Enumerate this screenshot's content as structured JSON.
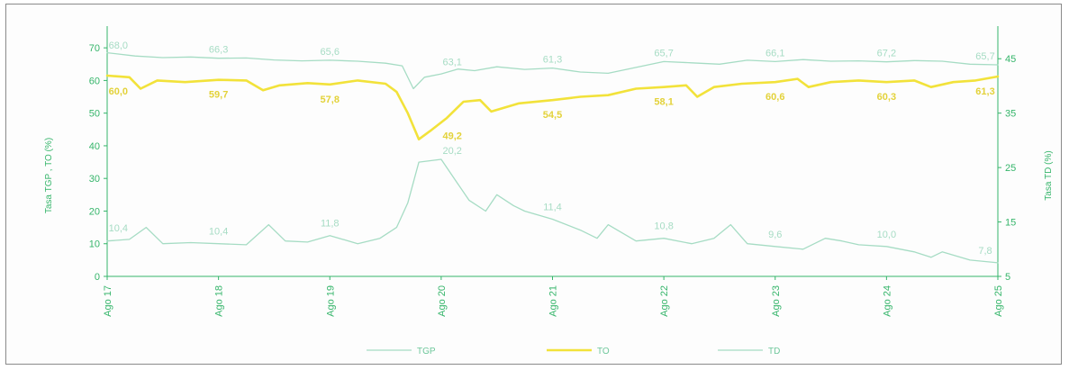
{
  "chart_data": {
    "type": "line",
    "ylabel_left": "Tasa TGP , TO (%)",
    "ylabel_right": "Tasa TD (%)",
    "ylim_left": [
      0,
      75
    ],
    "ylim_right": [
      5,
      50
    ],
    "y_ticks_left": [
      "0",
      "10",
      "20",
      "30",
      "40",
      "50",
      "60",
      "70"
    ],
    "y_ticks_right": [
      "5",
      "15",
      "25",
      "35",
      "45"
    ],
    "categories": [
      "Ago 17",
      "Ago 18",
      "Ago 19",
      "Ago 20",
      "Ago 21",
      "Ago 22",
      "Ago 23",
      "Ago 24",
      "Ago 25"
    ],
    "legend_position": "bottom",
    "colors": {
      "TGP": "#a6dcc4",
      "TO": "#f2e23a",
      "TD": "#a6dcc4",
      "axis": "#35b56a"
    },
    "series": [
      {
        "name": "TGP",
        "axis": "left",
        "x": [
          0,
          0.25,
          0.5,
          0.75,
          1,
          1.25,
          1.5,
          1.75,
          2,
          2.25,
          2.5,
          2.65,
          2.75,
          2.85,
          3,
          3.15,
          3.3,
          3.5,
          3.75,
          4,
          4.25,
          4.5,
          4.75,
          5,
          5.25,
          5.5,
          5.75,
          6,
          6.25,
          6.5,
          6.75,
          7,
          7.25,
          7.5,
          7.75,
          8
        ],
        "values": [
          68.5,
          67.5,
          67.0,
          67.2,
          66.8,
          66.9,
          66.3,
          66.0,
          66.2,
          65.9,
          65.3,
          64.5,
          57.5,
          61.0,
          62.0,
          63.5,
          63.0,
          64.2,
          63.4,
          63.8,
          62.6,
          62.2,
          64.0,
          65.8,
          65.4,
          65.0,
          66.2,
          65.8,
          66.4,
          65.9,
          66.0,
          65.7,
          66.1,
          65.9,
          65.0,
          64.8
        ]
      },
      {
        "name": "TO",
        "axis": "left",
        "x": [
          0,
          0.2,
          0.3,
          0.45,
          0.7,
          1,
          1.25,
          1.4,
          1.55,
          1.8,
          2,
          2.25,
          2.5,
          2.6,
          2.7,
          2.8,
          2.9,
          3.05,
          3.2,
          3.35,
          3.45,
          3.7,
          4,
          4.25,
          4.5,
          4.75,
          5,
          5.2,
          5.3,
          5.45,
          5.7,
          6,
          6.2,
          6.3,
          6.5,
          6.75,
          7,
          7.25,
          7.4,
          7.6,
          7.8,
          8
        ],
        "values": [
          61.5,
          61.0,
          57.5,
          60.0,
          59.5,
          60.2,
          60.0,
          57.0,
          58.5,
          59.2,
          58.8,
          60.0,
          59.0,
          56.5,
          50.0,
          42.0,
          44.5,
          48.5,
          53.5,
          54.0,
          50.5,
          53.0,
          54.0,
          55.0,
          55.5,
          57.5,
          58.0,
          58.5,
          55.0,
          58.0,
          59.0,
          59.5,
          60.5,
          58.0,
          59.5,
          60.0,
          59.5,
          60.0,
          58.0,
          59.5,
          60.0,
          61.2
        ]
      },
      {
        "name": "TD",
        "axis": "right",
        "x": [
          0,
          0.2,
          0.35,
          0.5,
          0.75,
          1,
          1.25,
          1.45,
          1.6,
          1.8,
          2,
          2.25,
          2.45,
          2.6,
          2.7,
          2.8,
          3,
          3.15,
          3.25,
          3.4,
          3.5,
          3.65,
          3.75,
          4,
          4.25,
          4.4,
          4.5,
          4.75,
          5,
          5.25,
          5.45,
          5.6,
          5.75,
          6,
          6.25,
          6.45,
          6.6,
          6.75,
          7,
          7.25,
          7.4,
          7.5,
          7.75,
          8
        ],
        "values": [
          11.5,
          11.8,
          14.0,
          11.0,
          11.2,
          11.0,
          10.8,
          14.5,
          11.5,
          11.3,
          12.5,
          11.0,
          12.0,
          14.0,
          18.5,
          26.0,
          26.5,
          22.0,
          19.0,
          17.0,
          20.0,
          18.0,
          17.0,
          15.5,
          13.5,
          12.0,
          14.5,
          11.5,
          12.0,
          11.0,
          12.0,
          14.5,
          11.0,
          10.5,
          10.0,
          12.0,
          11.5,
          10.8,
          10.5,
          9.5,
          8.5,
          9.5,
          8.0,
          7.5
        ]
      }
    ],
    "data_labels": {
      "TGP": [
        {
          "x": 0.1,
          "text": "68,0"
        },
        {
          "x": 1.0,
          "text": "66,3"
        },
        {
          "x": 2.0,
          "text": "65,6"
        },
        {
          "x": 3.1,
          "text": "63,1"
        },
        {
          "x": 4.0,
          "text": "61,3"
        },
        {
          "x": 5.0,
          "text": "65,7"
        },
        {
          "x": 6.0,
          "text": "66,1"
        },
        {
          "x": 7.0,
          "text": "67,2"
        },
        {
          "x": 8.0,
          "text": "65,7"
        }
      ],
      "TO": [
        {
          "x": 0.1,
          "text": "60,0"
        },
        {
          "x": 1.0,
          "text": "59,7"
        },
        {
          "x": 2.0,
          "text": "57,8"
        },
        {
          "x": 3.1,
          "text": "49,2"
        },
        {
          "x": 4.0,
          "text": "54,5"
        },
        {
          "x": 5.0,
          "text": "58,1"
        },
        {
          "x": 6.0,
          "text": "60,6"
        },
        {
          "x": 7.0,
          "text": "60,3"
        },
        {
          "x": 8.0,
          "text": "61,3"
        }
      ],
      "TD": [
        {
          "x": 0.1,
          "text": "10,4"
        },
        {
          "x": 1.0,
          "text": "10,4"
        },
        {
          "x": 2.0,
          "text": "11,8"
        },
        {
          "x": 3.1,
          "text": "20,2"
        },
        {
          "x": 4.0,
          "text": "11,4"
        },
        {
          "x": 5.0,
          "text": "10,8"
        },
        {
          "x": 6.0,
          "text": "9,6"
        },
        {
          "x": 7.0,
          "text": "10,0"
        },
        {
          "x": 8.0,
          "text": "7,8"
        }
      ]
    },
    "legend": [
      "TGP",
      "TO",
      "TD"
    ]
  }
}
